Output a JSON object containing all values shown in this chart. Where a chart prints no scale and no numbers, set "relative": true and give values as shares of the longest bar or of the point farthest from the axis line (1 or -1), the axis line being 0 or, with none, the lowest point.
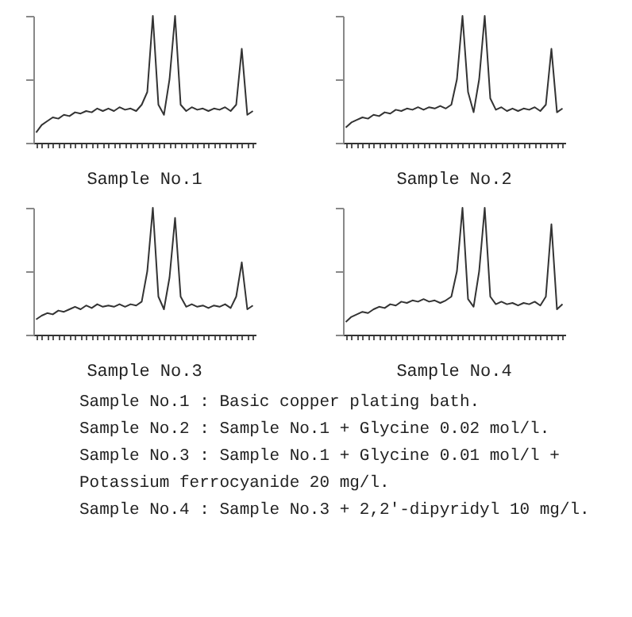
{
  "chart_data": [
    {
      "type": "line",
      "title": "Sample No.1",
      "relative": true,
      "categories": [
        null,
        null,
        null,
        null,
        null,
        null,
        null,
        null,
        null,
        null,
        null,
        null,
        null,
        null,
        null,
        null,
        null,
        null,
        null,
        null,
        null,
        null,
        null,
        null,
        null,
        null,
        null,
        null,
        null,
        null,
        null,
        null,
        null,
        null,
        null,
        null,
        null,
        null,
        null,
        null
      ],
      "series": [
        {
          "color": "#333333",
          "values": [
            0.08,
            0.14,
            0.17,
            0.2,
            0.19,
            0.22,
            0.21,
            0.24,
            0.23,
            0.25,
            0.24,
            0.27,
            0.25,
            0.27,
            0.25,
            0.28,
            0.26,
            0.27,
            0.25,
            0.3,
            0.4,
            1,
            0.3,
            0.22,
            0.5,
            1,
            0.3,
            0.25,
            0.28,
            0.26,
            0.27,
            0.25,
            0.27,
            0.26,
            0.28,
            0.25,
            0.3,
            0.74,
            0.22,
            0.25
          ]
        }
      ]
    },
    {
      "type": "line",
      "title": "Sample No.2",
      "relative": true,
      "categories": [
        null,
        null,
        null,
        null,
        null,
        null,
        null,
        null,
        null,
        null,
        null,
        null,
        null,
        null,
        null,
        null,
        null,
        null,
        null,
        null,
        null,
        null,
        null,
        null,
        null,
        null,
        null,
        null,
        null,
        null,
        null,
        null,
        null,
        null,
        null,
        null,
        null,
        null,
        null,
        null
      ],
      "series": [
        {
          "color": "#333333",
          "values": [
            0.12,
            0.16,
            0.18,
            0.2,
            0.19,
            0.22,
            0.21,
            0.24,
            0.23,
            0.26,
            0.25,
            0.27,
            0.26,
            0.28,
            0.26,
            0.28,
            0.27,
            0.29,
            0.27,
            0.3,
            0.5,
            1,
            0.4,
            0.24,
            0.5,
            1,
            0.35,
            0.26,
            0.28,
            0.25,
            0.27,
            0.25,
            0.27,
            0.26,
            0.28,
            0.25,
            0.3,
            0.74,
            0.24,
            0.27
          ]
        }
      ]
    },
    {
      "type": "line",
      "title": "Sample No.3",
      "relative": true,
      "categories": [
        null,
        null,
        null,
        null,
        null,
        null,
        null,
        null,
        null,
        null,
        null,
        null,
        null,
        null,
        null,
        null,
        null,
        null,
        null,
        null,
        null,
        null,
        null,
        null,
        null,
        null,
        null,
        null,
        null,
        null,
        null,
        null,
        null,
        null,
        null,
        null,
        null,
        null,
        null,
        null
      ],
      "series": [
        {
          "color": "#333333",
          "values": [
            0.12,
            0.15,
            0.17,
            0.16,
            0.19,
            0.18,
            0.2,
            0.22,
            0.2,
            0.23,
            0.21,
            0.24,
            0.22,
            0.23,
            0.22,
            0.24,
            0.22,
            0.24,
            0.23,
            0.26,
            0.5,
            1,
            0.3,
            0.2,
            0.45,
            0.92,
            0.3,
            0.22,
            0.24,
            0.22,
            0.23,
            0.21,
            0.23,
            0.22,
            0.24,
            0.21,
            0.3,
            0.57,
            0.2,
            0.23
          ]
        }
      ]
    },
    {
      "type": "line",
      "title": "Sample No.4",
      "relative": true,
      "annotations": [
        "Sample No.1 : Basic copper plating bath.",
        "Sample No.2 : Sample No.1 + Glycine 0.02 mol/l.",
        "Sample No.3 : Sample No.1 + Glycine 0.01 mol/l + Potassium ferrocyanide 20 mg/l.",
        "Sample No.4 : Sample No.3 + 2,2'-dipyridyl 10 mg/l."
      ],
      "categories": [
        null,
        null,
        null,
        null,
        null,
        null,
        null,
        null,
        null,
        null,
        null,
        null,
        null,
        null,
        null,
        null,
        null,
        null,
        null,
        null,
        null,
        null,
        null,
        null,
        null,
        null,
        null,
        null,
        null,
        null,
        null,
        null,
        null,
        null,
        null,
        null,
        null,
        null,
        null,
        null
      ],
      "series": [
        {
          "color": "#333333",
          "values": [
            0.1,
            0.14,
            0.16,
            0.18,
            0.17,
            0.2,
            0.22,
            0.21,
            0.24,
            0.23,
            0.26,
            0.25,
            0.27,
            0.26,
            0.28,
            0.26,
            0.27,
            0.25,
            0.27,
            0.3,
            0.5,
            1,
            0.28,
            0.22,
            0.5,
            1,
            0.3,
            0.24,
            0.26,
            0.24,
            0.25,
            0.23,
            0.25,
            0.24,
            0.26,
            0.23,
            0.3,
            0.87,
            0.2,
            0.24
          ]
        }
      ]
    }
  ]
}
